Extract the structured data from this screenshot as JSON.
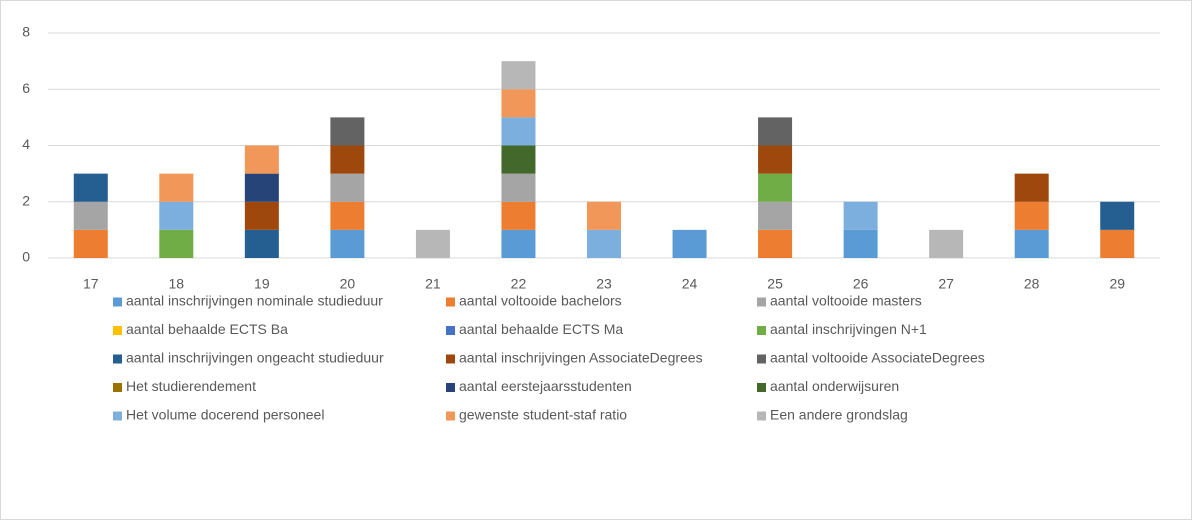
{
  "chart_data": {
    "type": "stacked_bar",
    "categories": [
      "17",
      "18",
      "19",
      "20",
      "21",
      "22",
      "23",
      "24",
      "25",
      "26",
      "27",
      "28",
      "29"
    ],
    "ylim": [
      0,
      8
    ],
    "yticks": [
      0,
      2,
      4,
      6,
      8
    ],
    "grid": true,
    "series": [
      {
        "name": "aantal inschrijvingen nominale studieduur",
        "color": "#5b9bd5",
        "values": [
          0,
          0,
          0,
          1,
          0,
          1,
          0,
          1,
          0,
          1,
          0,
          1,
          0
        ]
      },
      {
        "name": "aantal voltooide bachelors",
        "color": "#ed7d31",
        "values": [
          1,
          0,
          0,
          1,
          0,
          1,
          0,
          0,
          1,
          0,
          0,
          1,
          1
        ]
      },
      {
        "name": "aantal voltooide masters",
        "color": "#a5a5a5",
        "values": [
          1,
          0,
          0,
          1,
          0,
          1,
          0,
          0,
          1,
          0,
          0,
          0,
          0
        ]
      },
      {
        "name": "aantal behaalde ECTS Ba",
        "color": "#ffc000",
        "values": [
          0,
          0,
          0,
          0,
          0,
          0,
          0,
          0,
          0,
          0,
          0,
          0,
          0
        ]
      },
      {
        "name": "aantal behaalde ECTS Ma",
        "color": "#4472c4",
        "values": [
          0,
          0,
          0,
          0,
          0,
          0,
          0,
          0,
          0,
          0,
          0,
          0,
          0
        ]
      },
      {
        "name": "aantal inschrijvingen N+1",
        "color": "#70ad47",
        "values": [
          0,
          1,
          0,
          0,
          0,
          0,
          0,
          0,
          1,
          0,
          0,
          0,
          0
        ]
      },
      {
        "name": "aantal inschrijvingen ongeacht studieduur",
        "color": "#255e91",
        "values": [
          1,
          0,
          1,
          0,
          0,
          0,
          0,
          0,
          0,
          0,
          0,
          0,
          1
        ]
      },
      {
        "name": "aantal inschrijvingen AssociateDegrees",
        "color": "#9e480e",
        "values": [
          0,
          0,
          1,
          1,
          0,
          0,
          0,
          0,
          1,
          0,
          0,
          1,
          0
        ]
      },
      {
        "name": "aantal voltooide AssociateDegrees",
        "color": "#636363",
        "values": [
          0,
          0,
          0,
          1,
          0,
          0,
          0,
          0,
          1,
          0,
          0,
          0,
          0
        ]
      },
      {
        "name": "Het studierendement",
        "color": "#997300",
        "values": [
          0,
          0,
          0,
          0,
          0,
          0,
          0,
          0,
          0,
          0,
          0,
          0,
          0
        ]
      },
      {
        "name": "aantal eerstejaarsstudenten",
        "color": "#264478",
        "values": [
          0,
          0,
          1,
          0,
          0,
          0,
          0,
          0,
          0,
          0,
          0,
          0,
          0
        ]
      },
      {
        "name": "aantal onderwijsuren",
        "color": "#43682b",
        "values": [
          0,
          0,
          0,
          0,
          0,
          1,
          0,
          0,
          0,
          0,
          0,
          0,
          0
        ]
      },
      {
        "name": "Het volume docerend personeel",
        "color": "#7cafdd",
        "values": [
          0,
          1,
          0,
          0,
          0,
          1,
          1,
          0,
          0,
          1,
          0,
          0,
          0
        ]
      },
      {
        "name": "gewenste student-staf ratio",
        "color": "#f1975a",
        "values": [
          0,
          1,
          1,
          0,
          0,
          1,
          1,
          0,
          0,
          0,
          0,
          0,
          0
        ]
      },
      {
        "name": "Een andere grondslag",
        "color": "#b7b7b7",
        "values": [
          0,
          0,
          0,
          0,
          1,
          1,
          0,
          0,
          0,
          0,
          1,
          0,
          0
        ]
      }
    ]
  }
}
